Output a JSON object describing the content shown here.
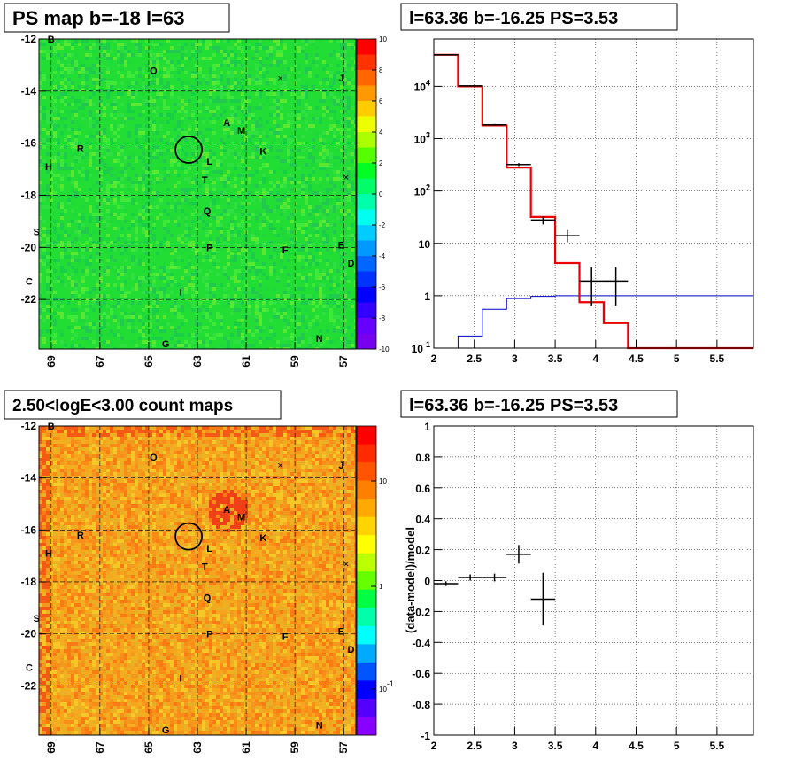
{
  "panels": {
    "tl_title": "PS map b=-18 l=63",
    "tr_title": "l=63.36 b=-16.25 PS=3.53",
    "bl_title": "2.50<logE<3.00 count maps",
    "br_title": "l=63.36 b=-16.25 PS=3.53"
  },
  "colors": {
    "map_green": "#22dd33",
    "map_orange": "#f5a020",
    "model_red": "#ee0000",
    "background_blue": "#0000cc",
    "data_black": "#000000"
  },
  "chart_data": [
    {
      "type": "heatmap",
      "title": "PS map b=-18 l=63",
      "x_ticks": [
        "69",
        "67",
        "65",
        "63",
        "61",
        "59",
        "57"
      ],
      "y_ticks": [
        "-12",
        "-14",
        "-16",
        "-18",
        "-20",
        "-22"
      ],
      "xlim": [
        69.5,
        56.5
      ],
      "ylim": [
        -23.9,
        -12
      ],
      "colorbar": {
        "ticks": [
          "10",
          "8",
          "6",
          "4",
          "2",
          "0",
          "-2",
          "-4",
          "-6",
          "-8",
          "-10"
        ],
        "range": [
          -10,
          10
        ]
      },
      "sources": [
        {
          "label": "B",
          "l": 69.0,
          "b": -12.0
        },
        {
          "label": "O",
          "l": 64.8,
          "b": -13.2
        },
        {
          "label": "J",
          "l": 57.1,
          "b": -13.5
        },
        {
          "label": "A",
          "l": 61.8,
          "b": -15.2
        },
        {
          "label": "M",
          "l": 61.2,
          "b": -15.5
        },
        {
          "label": "K",
          "l": 60.3,
          "b": -16.3
        },
        {
          "label": "R",
          "l": 67.8,
          "b": -16.2
        },
        {
          "label": "L",
          "l": 62.5,
          "b": -16.7
        },
        {
          "label": "H",
          "l": 69.1,
          "b": -16.9
        },
        {
          "label": "T",
          "l": 62.7,
          "b": -17.4
        },
        {
          "label": "Q",
          "l": 62.6,
          "b": -18.6
        },
        {
          "label": "S",
          "l": 69.6,
          "b": -19.4
        },
        {
          "label": "P",
          "l": 62.5,
          "b": -20.0
        },
        {
          "label": "F",
          "l": 59.4,
          "b": -20.1
        },
        {
          "label": "E",
          "l": 57.1,
          "b": -19.9
        },
        {
          "label": "D",
          "l": 56.7,
          "b": -20.6
        },
        {
          "label": "C",
          "l": 69.9,
          "b": -21.3
        },
        {
          "label": "I",
          "l": 63.7,
          "b": -21.7
        },
        {
          "label": "G",
          "l": 64.3,
          "b": -23.7
        },
        {
          "label": "N",
          "l": 58.0,
          "b": -23.5
        }
      ],
      "circle_marker": {
        "l": 63.36,
        "b": -16.25
      }
    },
    {
      "type": "line",
      "title": "l=63.36 b=-16.25 PS=3.53",
      "x_ticks": [
        "2",
        "2.5",
        "3",
        "3.5",
        "4",
        "4.5",
        "5",
        "5.5"
      ],
      "y_ticks": [
        "10^-1",
        "1",
        "10",
        "10^2",
        "10^3",
        "10^4"
      ],
      "xlim": [
        2,
        5.95
      ],
      "ylim": [
        0.1,
        80000
      ],
      "y_scale": "log",
      "grid": true,
      "series": [
        {
          "style": "red-step",
          "bins": [
            2.0,
            2.3,
            2.6,
            2.9,
            3.2,
            3.5,
            3.8,
            4.1,
            4.4,
            5.95
          ],
          "values": [
            40000,
            10000,
            1800,
            280,
            32,
            4.2,
            0.75,
            0.3,
            0.1
          ]
        },
        {
          "style": "blue-step",
          "bins": [
            2.0,
            2.3,
            2.6,
            2.9,
            3.2,
            3.5,
            5.95
          ],
          "values": [
            0.1,
            0.17,
            0.55,
            0.88,
            0.97,
            1.0
          ]
        },
        {
          "style": "data-points",
          "points": [
            {
              "x": 2.15,
              "y": 40000,
              "xerr": 0.15,
              "ylo": 39000,
              "yhi": 41000
            },
            {
              "x": 2.45,
              "y": 10200,
              "xerr": 0.15,
              "ylo": 9900,
              "yhi": 10500
            },
            {
              "x": 2.75,
              "y": 1850,
              "xerr": 0.15,
              "ylo": 1780,
              "yhi": 1920
            },
            {
              "x": 3.05,
              "y": 320,
              "xerr": 0.15,
              "ylo": 300,
              "yhi": 340
            },
            {
              "x": 3.35,
              "y": 28,
              "xerr": 0.15,
              "ylo": 23,
              "yhi": 33
            },
            {
              "x": 3.65,
              "y": 14,
              "xerr": 0.15,
              "ylo": 10.5,
              "yhi": 18
            },
            {
              "x": 3.95,
              "y": 1.9,
              "xerr": 0.15,
              "ylo": 0.65,
              "yhi": 3.5
            },
            {
              "x": 4.25,
              "y": 1.9,
              "xerr": 0.15,
              "ylo": 0.65,
              "yhi": 3.5
            }
          ]
        }
      ]
    },
    {
      "type": "heatmap",
      "title": "2.50<logE<3.00 count maps",
      "x_ticks": [
        "69",
        "67",
        "65",
        "63",
        "61",
        "59",
        "57"
      ],
      "y_ticks": [
        "-12",
        "-14",
        "-16",
        "-18",
        "-20",
        "-22"
      ],
      "xlim": [
        69.5,
        56.5
      ],
      "ylim": [
        -23.9,
        -12
      ],
      "colorbar": {
        "ticks": [
          "10",
          "1",
          "10^-1"
        ],
        "scale": "log"
      },
      "circle_marker": {
        "l": 63.36,
        "b": -16.25
      }
    },
    {
      "type": "scatter",
      "title": "l=63.36 b=-16.25 PS=3.53",
      "ylabel": "(data-model)/model",
      "x_ticks": [
        "2",
        "2.5",
        "3",
        "3.5",
        "4",
        "4.5",
        "5",
        "5.5"
      ],
      "y_ticks": [
        "1",
        "0.8",
        "0.6",
        "0.4",
        "0.2",
        "0",
        "-0.2",
        "-0.4",
        "-0.6",
        "-0.8",
        "-1"
      ],
      "xlim": [
        2,
        5.95
      ],
      "ylim": [
        -1,
        1
      ],
      "grid": true,
      "points": [
        {
          "x": 2.15,
          "y": -0.02,
          "xerr": 0.15,
          "yerr": 0.015
        },
        {
          "x": 2.45,
          "y": 0.02,
          "xerr": 0.15,
          "yerr": 0.02
        },
        {
          "x": 2.75,
          "y": 0.02,
          "xerr": 0.15,
          "yerr": 0.025
        },
        {
          "x": 3.05,
          "y": 0.17,
          "xerr": 0.15,
          "yerr": 0.06
        },
        {
          "x": 3.35,
          "y": -0.12,
          "xerr": 0.15,
          "yerr": 0.17
        }
      ]
    }
  ]
}
